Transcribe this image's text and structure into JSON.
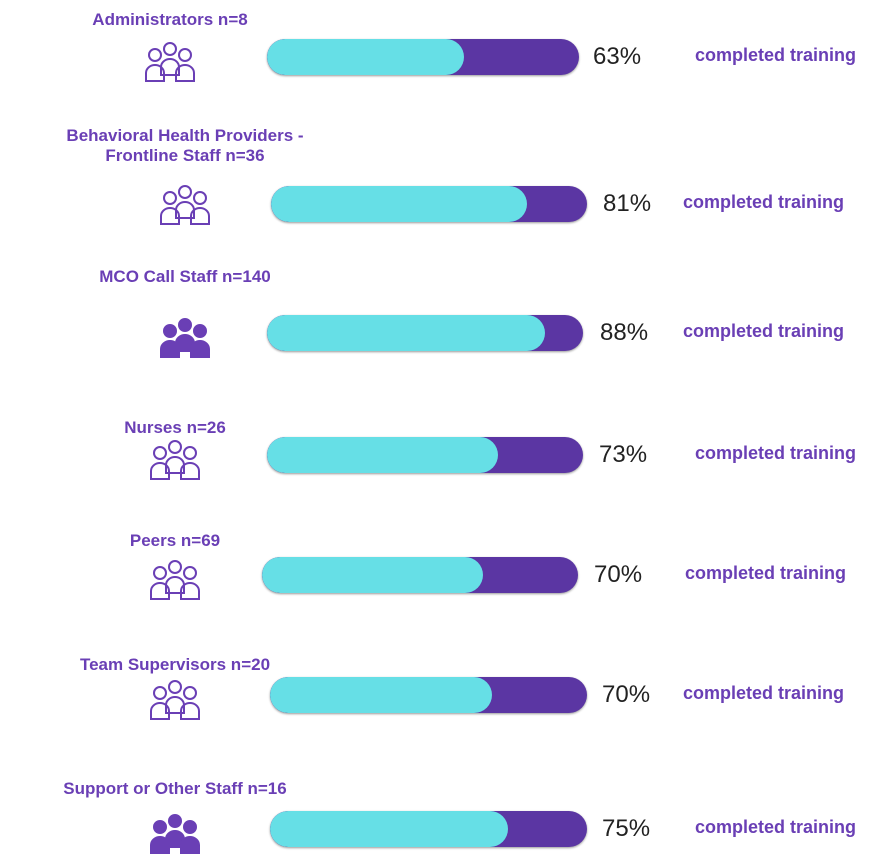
{
  "chart_data": {
    "type": "bar",
    "categories": [
      "Administrators n=8",
      "Behavioral Health Providers - Frontline Staff n=36",
      "MCO Call Staff n=140",
      "Nurses n=26",
      "Peers n=69",
      "Team Supervisors n=20",
      "Support or Other Staff n=16"
    ],
    "values": [
      63,
      81,
      88,
      73,
      70,
      70,
      75
    ],
    "value_labels": [
      "63%",
      "81%",
      "88%",
      "73%",
      "70%",
      "70%",
      "75%"
    ],
    "annotation": "completed training",
    "xlim": [
      0,
      100
    ],
    "color": "#66dfe6",
    "track_color": "#5b36a3"
  }
}
